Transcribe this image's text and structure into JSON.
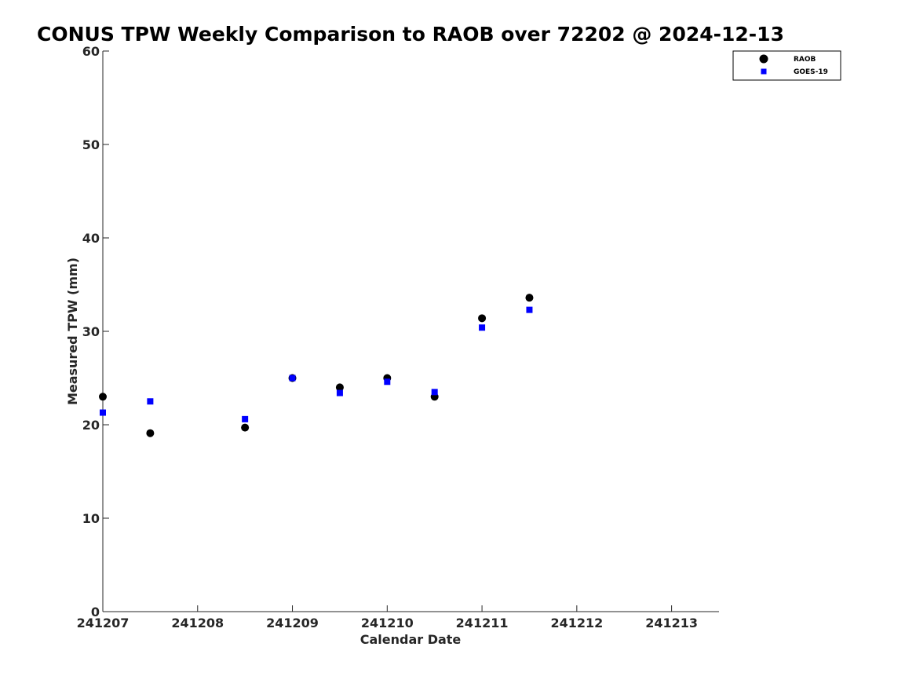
{
  "chart_data": {
    "type": "scatter",
    "title": "CONUS TPW Weekly Comparison to RAOB over 72202 @ 2024-12-13",
    "xlabel": "Calendar Date",
    "ylabel": "Measured TPW (mm)",
    "xlim": [
      0,
      6.5
    ],
    "ylim": [
      0,
      60
    ],
    "x_ticks": [
      0,
      1,
      2,
      3,
      4,
      5,
      6
    ],
    "x_tick_labels": [
      "241207",
      "241208",
      "241209",
      "241210",
      "241211",
      "241212",
      "241213"
    ],
    "y_ticks": [
      0,
      10,
      20,
      30,
      40,
      50,
      60
    ],
    "y_tick_labels": [
      "0",
      "10",
      "20",
      "30",
      "40",
      "50",
      "60"
    ],
    "grid": false,
    "legend_position": "top-right",
    "series": [
      {
        "name": "RAOB",
        "marker": "circle",
        "color": "#000000",
        "x": [
          0,
          0.5,
          1.5,
          2,
          2.5,
          3,
          3.5,
          4,
          4.5
        ],
        "y": [
          23.0,
          19.1,
          19.7,
          25.0,
          24.0,
          25.0,
          23.0,
          31.4,
          33.6
        ]
      },
      {
        "name": "GOES-19",
        "marker": "square",
        "color": "#0000ff",
        "x": [
          0,
          0.5,
          1.5,
          2,
          2.5,
          3,
          3.5,
          4,
          4.5
        ],
        "y": [
          21.3,
          22.5,
          20.6,
          25.0,
          23.4,
          24.6,
          23.5,
          30.4,
          32.3
        ]
      }
    ]
  }
}
